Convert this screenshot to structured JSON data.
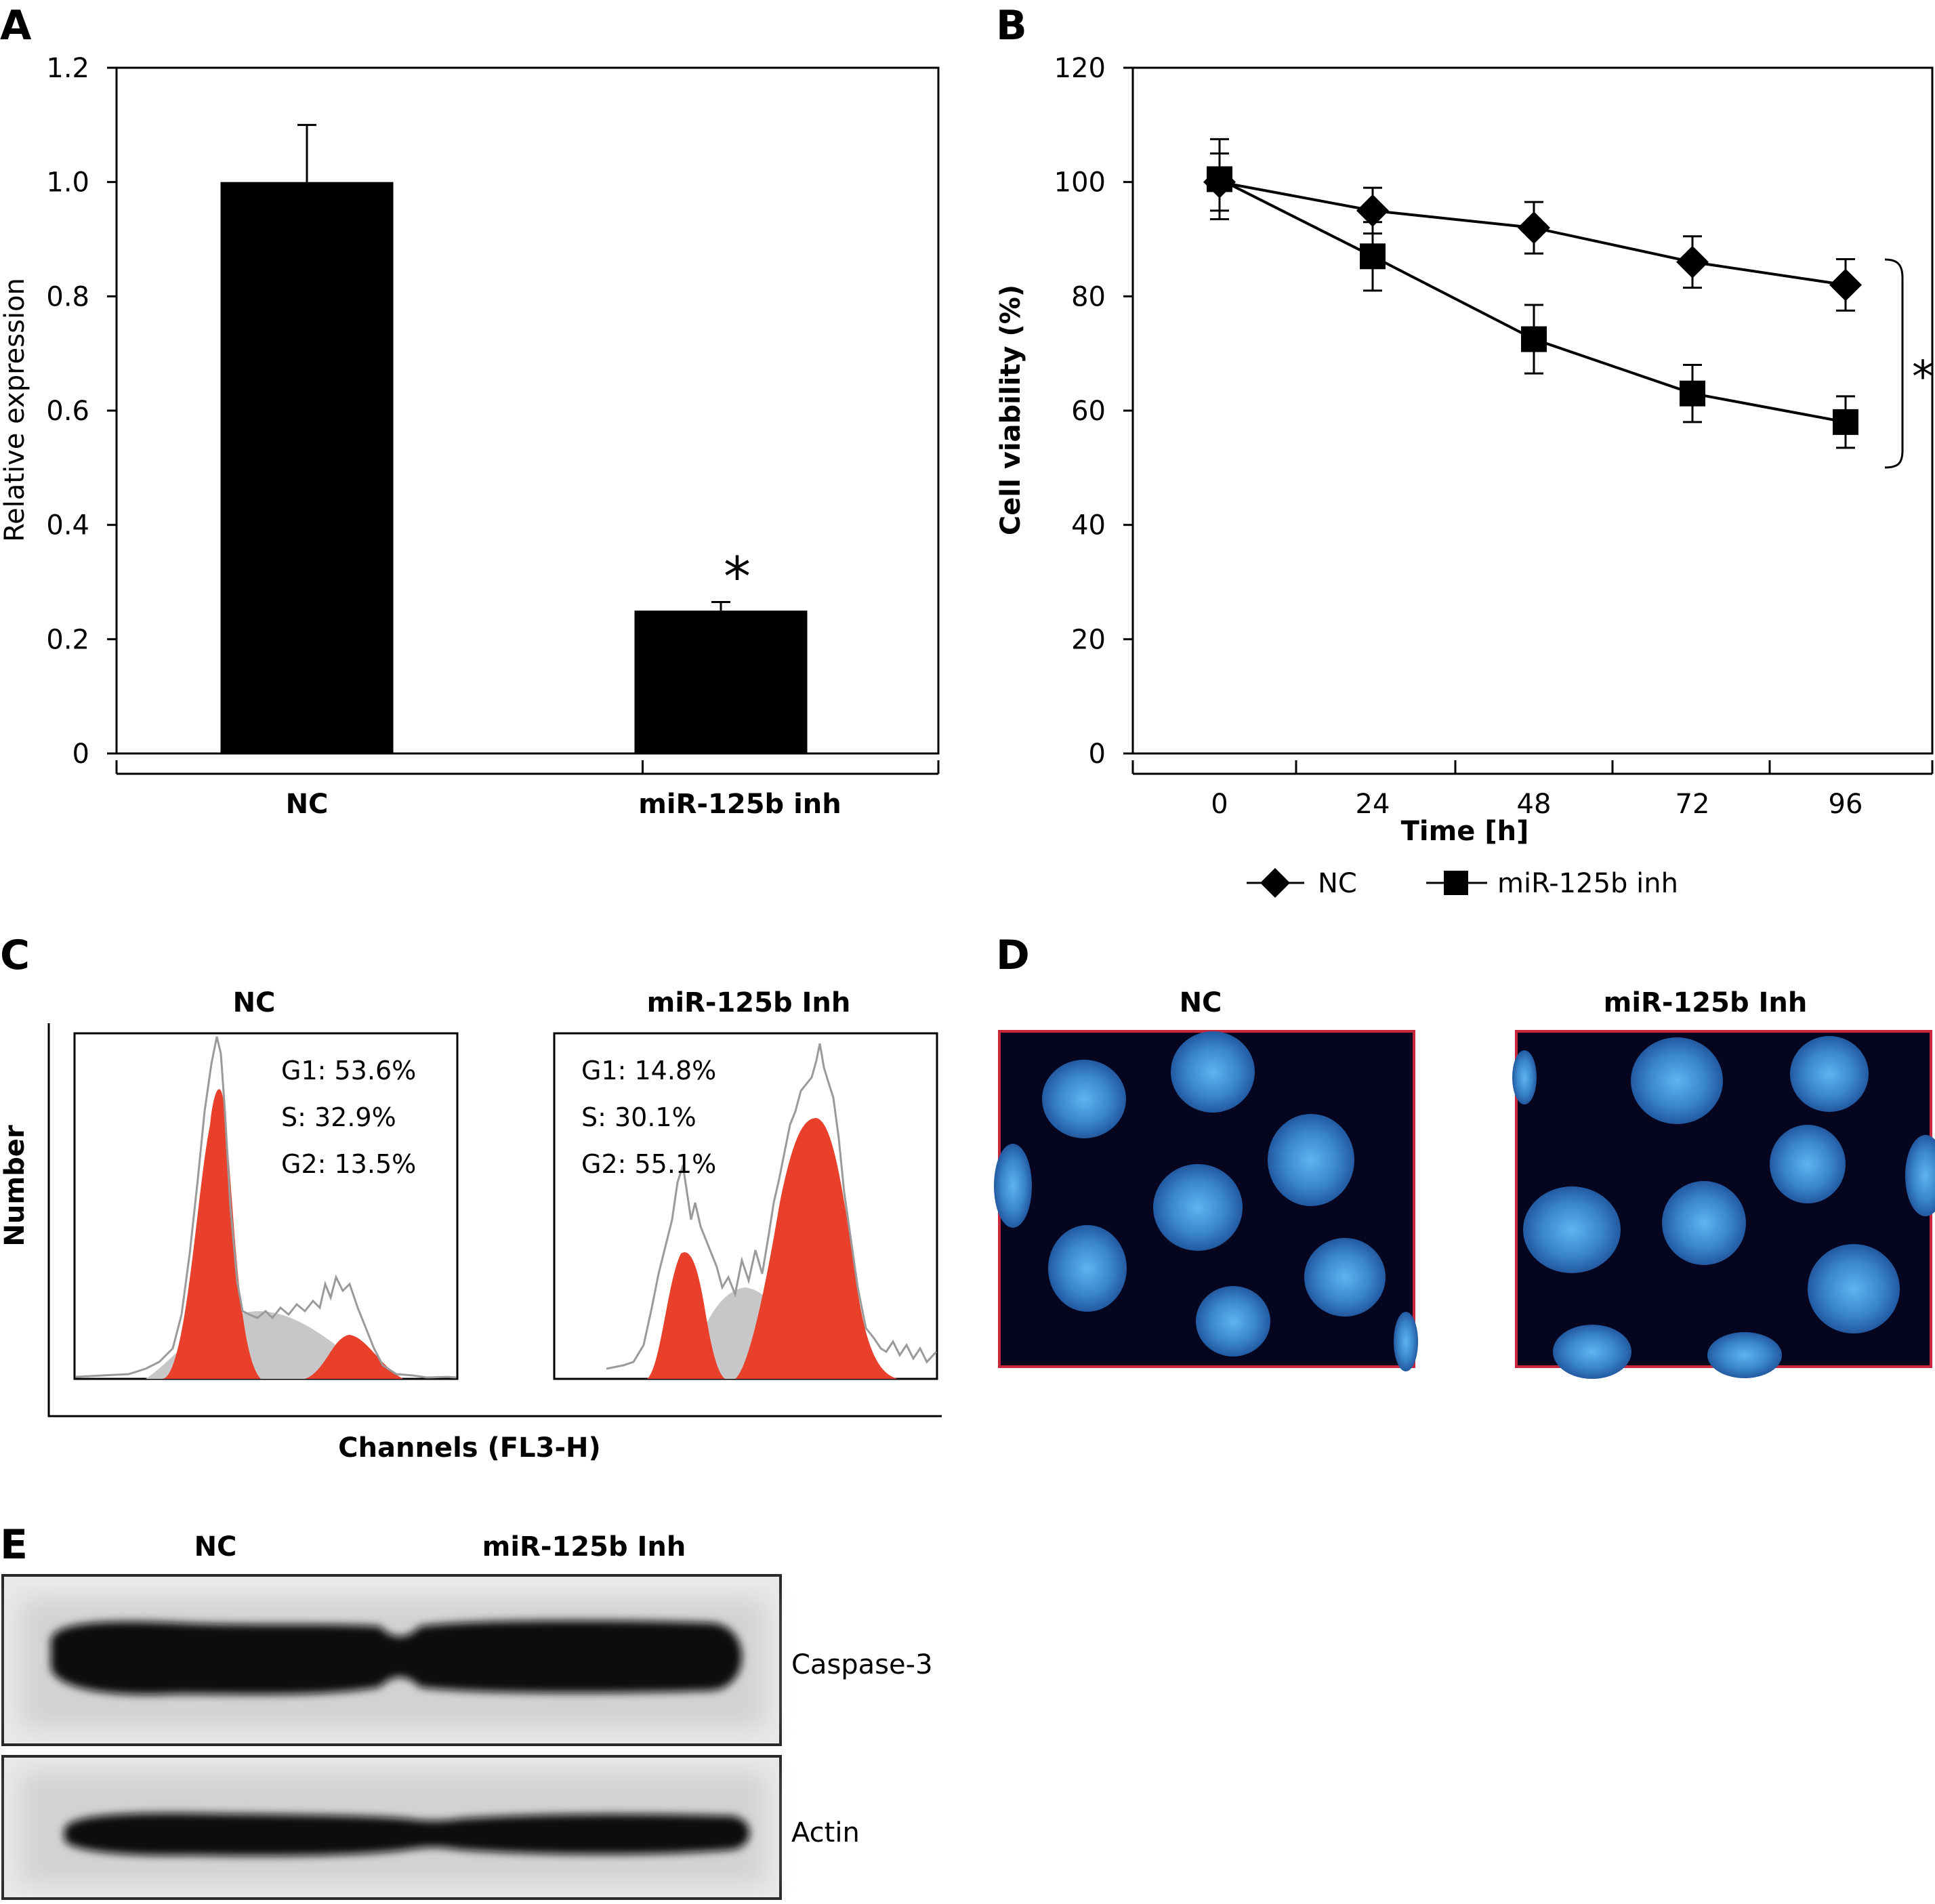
{
  "panels": {
    "A": {
      "letter": "A",
      "chart_data": {
        "type": "bar",
        "categories": [
          "NC",
          "miR-125b inh"
        ],
        "values": [
          1.0,
          0.25
        ],
        "errors": [
          0.1,
          0.015
        ],
        "ylabel": "Relative expression",
        "xlabel": "",
        "ylim": [
          0,
          1.2
        ],
        "yticks": [
          "0",
          "0.2",
          "0.4",
          "0.6",
          "0.8",
          "1.0",
          "1.2"
        ],
        "yticks_values": [
          0,
          0.2,
          0.4,
          0.6,
          0.8,
          1.0,
          1.2
        ],
        "annotation": "*"
      }
    },
    "B": {
      "letter": "B",
      "chart_data": {
        "type": "line",
        "x": [
          0,
          24,
          48,
          72,
          96
        ],
        "xticks": [
          "0",
          "24",
          "48",
          "72",
          "96"
        ],
        "series": [
          {
            "name": "NC",
            "marker": "diamond",
            "values": [
              100,
              95,
              92,
              86,
              82
            ],
            "errors": [
              5,
              4,
              4.5,
              4.5,
              4.5
            ]
          },
          {
            "name": "miR-125b inh",
            "marker": "square",
            "values": [
              100.5,
              87,
              72.5,
              63,
              58
            ],
            "errors": [
              7,
              6,
              6,
              5,
              4.5
            ]
          }
        ],
        "xlabel": "Time [h]",
        "ylabel": "Cell viability (%)",
        "ylim": [
          0,
          120
        ],
        "yticks": [
          "0",
          "20",
          "40",
          "60",
          "80",
          "100",
          "120"
        ],
        "yticks_values": [
          0,
          20,
          40,
          60,
          80,
          100,
          120
        ],
        "annotation": "*",
        "legend_position": "bottom"
      }
    },
    "C": {
      "letter": "C",
      "ylabel": "Number",
      "xlabel": "Channels (FL3-H)",
      "histograms": [
        {
          "title": "NC",
          "stats": [
            "G1: 53.6%",
            "S: 32.9%",
            "G2: 13.5%"
          ],
          "g1": 53.6,
          "s": 32.9,
          "g2": 13.5
        },
        {
          "title": "miR-125b Inh",
          "stats": [
            "G1: 14.8%",
            "S: 30.1%",
            "G2: 55.1%"
          ],
          "g1": 14.8,
          "s": 30.1,
          "g2": 55.1
        }
      ]
    },
    "D": {
      "letter": "D",
      "images": [
        {
          "title": "NC"
        },
        {
          "title": "miR-125b Inh"
        }
      ]
    },
    "E": {
      "letter": "E",
      "lanes": [
        "NC",
        "miR-125b Inh"
      ],
      "bands": [
        "Caspase-3",
        "Actin"
      ]
    }
  },
  "colors": {
    "black": "#000000",
    "g1g2_fill": "#e8402b",
    "s_fill": "#c7c7c9",
    "trace": "#9a9a9a",
    "micro_bg": "#05051f",
    "micro_border": "#c8283c",
    "nucleus": "#3d8fd4"
  }
}
